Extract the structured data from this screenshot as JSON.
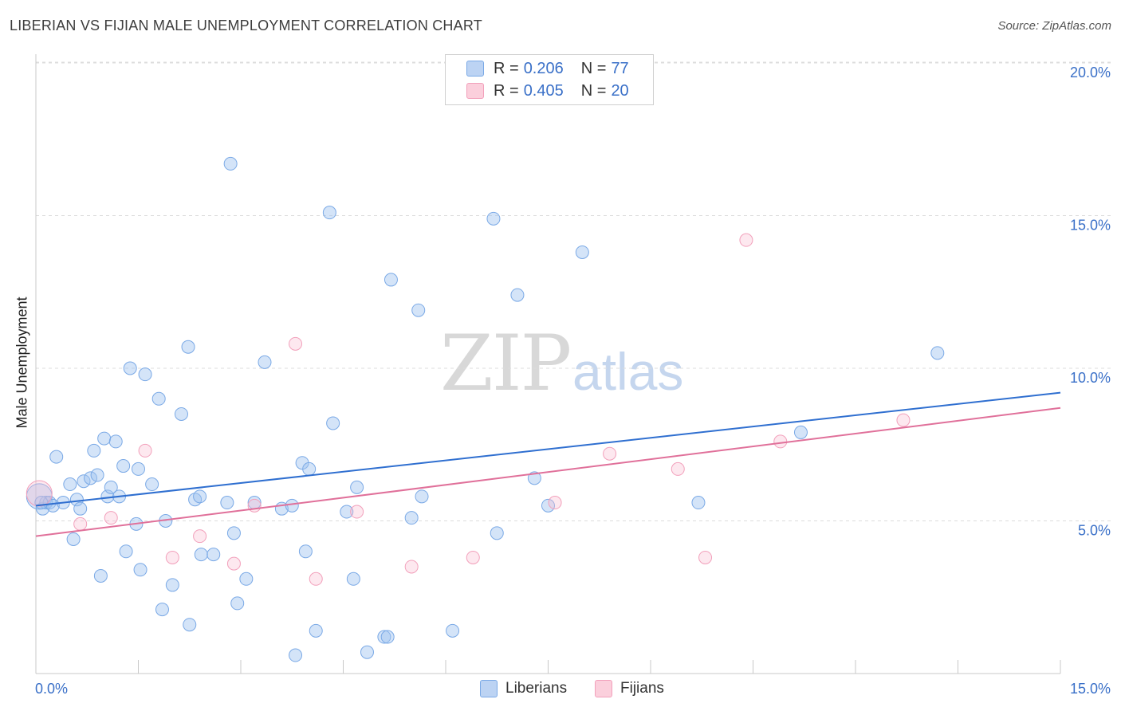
{
  "title": "LIBERIAN VS FIJIAN MALE UNEMPLOYMENT CORRELATION CHART",
  "source": "Source: ZipAtlas.com",
  "legend_top": {
    "rows": [
      {
        "r_label": "R =",
        "r_value": "0.206",
        "n_label": "N =",
        "n_value": "77"
      },
      {
        "r_label": "R =",
        "r_value": "0.405",
        "n_label": "N =",
        "n_value": "20"
      }
    ]
  },
  "watermark": {
    "zip": "ZIP",
    "atlas": "atlas"
  },
  "chart_data": {
    "type": "scatter",
    "title": "LIBERIAN VS FIJIAN MALE UNEMPLOYMENT CORRELATION CHART",
    "xlabel": "",
    "ylabel": "Male Unemployment",
    "xlim": [
      0,
      15
    ],
    "ylim": [
      0,
      20
    ],
    "x_tick_labels": [
      "0.0%",
      "15.0%"
    ],
    "y_ticks": [
      5,
      10,
      15,
      20
    ],
    "y_tick_labels": [
      "5.0%",
      "10.0%",
      "15.0%",
      "20.0%"
    ],
    "colors": {
      "liberians": "#7aa9e6",
      "fijians": "#f2a0bb",
      "liberians_line": "#2f6fd0",
      "fijians_line": "#e0709a",
      "tick_text": "#3a70c8"
    },
    "series": [
      {
        "name": "Liberians",
        "trend": {
          "x": [
            0,
            15
          ],
          "y": [
            5.5,
            9.2
          ]
        },
        "points": [
          [
            0.05,
            5.8
          ],
          [
            0.1,
            5.4
          ],
          [
            0.15,
            5.6
          ],
          [
            0.2,
            5.6
          ],
          [
            0.25,
            5.5
          ],
          [
            0.3,
            7.1
          ],
          [
            0.4,
            5.6
          ],
          [
            0.5,
            6.2
          ],
          [
            0.55,
            4.4
          ],
          [
            0.6,
            5.7
          ],
          [
            0.65,
            5.4
          ],
          [
            0.7,
            6.3
          ],
          [
            0.8,
            6.4
          ],
          [
            0.85,
            7.3
          ],
          [
            0.9,
            6.5
          ],
          [
            0.95,
            3.2
          ],
          [
            1.0,
            7.7
          ],
          [
            1.05,
            5.8
          ],
          [
            1.1,
            6.1
          ],
          [
            1.17,
            7.6
          ],
          [
            1.22,
            5.8
          ],
          [
            1.28,
            6.8
          ],
          [
            1.32,
            4.0
          ],
          [
            1.38,
            10.0
          ],
          [
            1.47,
            4.9
          ],
          [
            1.5,
            6.7
          ],
          [
            1.53,
            3.4
          ],
          [
            1.6,
            9.8
          ],
          [
            1.7,
            6.2
          ],
          [
            1.8,
            9.0
          ],
          [
            1.85,
            2.1
          ],
          [
            1.9,
            5.0
          ],
          [
            2.0,
            2.9
          ],
          [
            2.13,
            8.5
          ],
          [
            2.23,
            10.7
          ],
          [
            2.25,
            1.6
          ],
          [
            2.33,
            5.7
          ],
          [
            2.4,
            5.8
          ],
          [
            2.42,
            3.9
          ],
          [
            2.6,
            3.9
          ],
          [
            2.8,
            5.6
          ],
          [
            2.85,
            16.7
          ],
          [
            2.9,
            4.6
          ],
          [
            2.95,
            2.3
          ],
          [
            3.08,
            3.1
          ],
          [
            3.2,
            5.6
          ],
          [
            3.35,
            10.2
          ],
          [
            3.6,
            5.4
          ],
          [
            3.75,
            5.5
          ],
          [
            3.8,
            0.6
          ],
          [
            3.9,
            6.9
          ],
          [
            3.95,
            4.0
          ],
          [
            4.0,
            6.7
          ],
          [
            4.1,
            1.4
          ],
          [
            4.3,
            15.1
          ],
          [
            4.35,
            8.2
          ],
          [
            4.55,
            5.3
          ],
          [
            4.65,
            3.1
          ],
          [
            4.7,
            6.1
          ],
          [
            4.85,
            0.7
          ],
          [
            5.1,
            1.2
          ],
          [
            5.15,
            1.2
          ],
          [
            5.2,
            12.9
          ],
          [
            5.5,
            5.1
          ],
          [
            5.6,
            11.9
          ],
          [
            5.65,
            5.8
          ],
          [
            6.1,
            1.4
          ],
          [
            6.7,
            14.9
          ],
          [
            6.75,
            4.6
          ],
          [
            7.05,
            12.4
          ],
          [
            7.3,
            6.4
          ],
          [
            7.5,
            5.5
          ],
          [
            8.0,
            13.8
          ],
          [
            9.7,
            5.6
          ],
          [
            11.2,
            7.9
          ],
          [
            13.2,
            10.5
          ],
          [
            0.08,
            5.6
          ]
        ]
      },
      {
        "name": "Fijians",
        "trend": {
          "x": [
            0,
            15
          ],
          "y": [
            4.5,
            8.7
          ]
        },
        "points": [
          [
            0.05,
            5.9
          ],
          [
            0.65,
            4.9
          ],
          [
            1.1,
            5.1
          ],
          [
            1.6,
            7.3
          ],
          [
            2.0,
            3.8
          ],
          [
            2.4,
            4.5
          ],
          [
            2.9,
            3.6
          ],
          [
            3.2,
            5.5
          ],
          [
            3.8,
            10.8
          ],
          [
            4.1,
            3.1
          ],
          [
            4.7,
            5.3
          ],
          [
            5.5,
            3.5
          ],
          [
            6.4,
            3.8
          ],
          [
            7.6,
            5.6
          ],
          [
            8.4,
            7.2
          ],
          [
            9.4,
            6.7
          ],
          [
            9.8,
            3.8
          ],
          [
            10.4,
            14.2
          ],
          [
            10.9,
            7.6
          ],
          [
            12.7,
            8.3
          ]
        ]
      }
    ]
  },
  "bottom_legend": {
    "liberians": "Liberians",
    "fijians": "Fijians"
  }
}
